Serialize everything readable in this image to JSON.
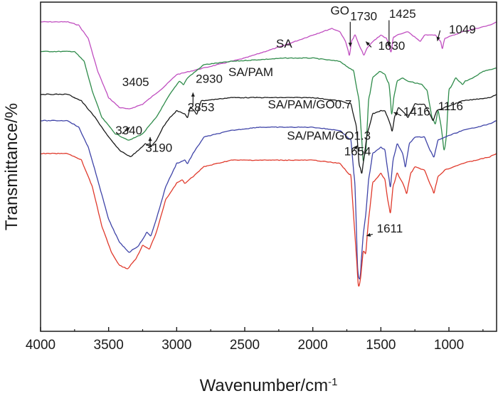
{
  "chart_data": {
    "type": "line",
    "xlabel": "Wavenumber/cm",
    "xlabel_sup": "-1",
    "ylabel": "Transmittance/%",
    "xlim": [
      4000,
      650
    ],
    "x_reversed": true,
    "y_ticks_shown": false,
    "xticks": [
      4000,
      3500,
      3000,
      2500,
      2000,
      1500,
      1000
    ],
    "grid": false,
    "legend": "none",
    "series": [
      {
        "name": "GO",
        "color": "#c04ec0",
        "offset": 0.06,
        "points": [
          [
            4000,
            0.0
          ],
          [
            3800,
            0.0
          ],
          [
            3720,
            0.01
          ],
          [
            3650,
            0.05
          ],
          [
            3580,
            0.15
          ],
          [
            3500,
            0.23
          ],
          [
            3420,
            0.26
          ],
          [
            3350,
            0.265
          ],
          [
            3250,
            0.25
          ],
          [
            3100,
            0.2
          ],
          [
            3000,
            0.16
          ],
          [
            2800,
            0.14
          ],
          [
            2500,
            0.11
          ],
          [
            2200,
            0.07
          ],
          [
            2000,
            0.04
          ],
          [
            1860,
            0.02
          ],
          [
            1800,
            0.03
          ],
          [
            1760,
            0.06
          ],
          [
            1730,
            0.1
          ],
          [
            1715,
            0.06
          ],
          [
            1690,
            0.04
          ],
          [
            1650,
            0.08
          ],
          [
            1625,
            0.1
          ],
          [
            1600,
            0.08
          ],
          [
            1560,
            0.06
          ],
          [
            1500,
            0.04
          ],
          [
            1460,
            0.05
          ],
          [
            1440,
            0.07
          ],
          [
            1425,
            0.09
          ],
          [
            1410,
            0.05
          ],
          [
            1380,
            0.04
          ],
          [
            1300,
            0.03
          ],
          [
            1240,
            0.05
          ],
          [
            1210,
            0.06
          ],
          [
            1180,
            0.04
          ],
          [
            1100,
            0.04
          ],
          [
            1060,
            0.06
          ],
          [
            1049,
            0.08
          ],
          [
            1030,
            0.05
          ],
          [
            900,
            0.03
          ],
          [
            700,
            0.01
          ],
          [
            650,
            0.0
          ]
        ]
      },
      {
        "name": "SA",
        "color": "#2e8b4a",
        "offset": 0.15,
        "points": [
          [
            4000,
            0.0
          ],
          [
            3750,
            0.0
          ],
          [
            3680,
            0.03
          ],
          [
            3620,
            0.12
          ],
          [
            3550,
            0.2
          ],
          [
            3450,
            0.25
          ],
          [
            3350,
            0.27
          ],
          [
            3250,
            0.25
          ],
          [
            3150,
            0.2
          ],
          [
            3050,
            0.13
          ],
          [
            2980,
            0.09
          ],
          [
            2950,
            0.1
          ],
          [
            2920,
            0.08
          ],
          [
            2800,
            0.04
          ],
          [
            2600,
            0.03
          ],
          [
            2400,
            0.025
          ],
          [
            2200,
            0.02
          ],
          [
            2000,
            0.02
          ],
          [
            1800,
            0.03
          ],
          [
            1700,
            0.06
          ],
          [
            1660,
            0.15
          ],
          [
            1630,
            0.33
          ],
          [
            1610,
            0.3
          ],
          [
            1590,
            0.15
          ],
          [
            1560,
            0.08
          ],
          [
            1510,
            0.06
          ],
          [
            1470,
            0.07
          ],
          [
            1440,
            0.1
          ],
          [
            1420,
            0.19
          ],
          [
            1405,
            0.14
          ],
          [
            1380,
            0.09
          ],
          [
            1340,
            0.08
          ],
          [
            1300,
            0.09
          ],
          [
            1200,
            0.1
          ],
          [
            1160,
            0.12
          ],
          [
            1125,
            0.2
          ],
          [
            1100,
            0.22
          ],
          [
            1080,
            0.18
          ],
          [
            1060,
            0.22
          ],
          [
            1035,
            0.3
          ],
          [
            1020,
            0.26
          ],
          [
            1000,
            0.12
          ],
          [
            950,
            0.08
          ],
          [
            900,
            0.1
          ],
          [
            880,
            0.09
          ],
          [
            820,
            0.08
          ],
          [
            750,
            0.06
          ],
          [
            650,
            0.05
          ]
        ]
      },
      {
        "name": "SA/PAM",
        "color": "#1a1a1a",
        "offset": 0.28,
        "points": [
          [
            4000,
            0.0
          ],
          [
            3800,
            0.0
          ],
          [
            3700,
            0.02
          ],
          [
            3600,
            0.07
          ],
          [
            3500,
            0.13
          ],
          [
            3420,
            0.17
          ],
          [
            3340,
            0.19
          ],
          [
            3280,
            0.17
          ],
          [
            3230,
            0.15
          ],
          [
            3190,
            0.16
          ],
          [
            3150,
            0.14
          ],
          [
            3100,
            0.1
          ],
          [
            3050,
            0.07
          ],
          [
            3000,
            0.05
          ],
          [
            2940,
            0.06
          ],
          [
            2920,
            0.07
          ],
          [
            2900,
            0.04
          ],
          [
            2870,
            0.05
          ],
          [
            2853,
            0.06
          ],
          [
            2820,
            0.02
          ],
          [
            2600,
            0.01
          ],
          [
            2400,
            0.01
          ],
          [
            2200,
            0.01
          ],
          [
            2000,
            0.01
          ],
          [
            1800,
            0.02
          ],
          [
            1720,
            0.03
          ],
          [
            1680,
            0.1
          ],
          [
            1660,
            0.21
          ],
          [
            1640,
            0.24
          ],
          [
            1620,
            0.18
          ],
          [
            1600,
            0.12
          ],
          [
            1560,
            0.06
          ],
          [
            1500,
            0.05
          ],
          [
            1470,
            0.05
          ],
          [
            1450,
            0.07
          ],
          [
            1416,
            0.11
          ],
          [
            1400,
            0.07
          ],
          [
            1370,
            0.04
          ],
          [
            1320,
            0.06
          ],
          [
            1300,
            0.07
          ],
          [
            1250,
            0.03
          ],
          [
            1180,
            0.03
          ],
          [
            1140,
            0.06
          ],
          [
            1116,
            0.08
          ],
          [
            1090,
            0.05
          ],
          [
            1030,
            0.04
          ],
          [
            900,
            0.02
          ],
          [
            700,
            0.01
          ],
          [
            650,
            0.0
          ]
        ]
      },
      {
        "name": "SA/PAM/GO0.7",
        "color": "#3f44a8",
        "offset": 0.36,
        "points": [
          [
            4000,
            0.0
          ],
          [
            3800,
            0.0
          ],
          [
            3720,
            0.02
          ],
          [
            3650,
            0.08
          ],
          [
            3580,
            0.18
          ],
          [
            3500,
            0.3
          ],
          [
            3420,
            0.37
          ],
          [
            3350,
            0.4
          ],
          [
            3280,
            0.38
          ],
          [
            3220,
            0.34
          ],
          [
            3190,
            0.35
          ],
          [
            3150,
            0.3
          ],
          [
            3080,
            0.2
          ],
          [
            3000,
            0.13
          ],
          [
            2940,
            0.12
          ],
          [
            2920,
            0.13
          ],
          [
            2880,
            0.1
          ],
          [
            2800,
            0.05
          ],
          [
            2600,
            0.03
          ],
          [
            2400,
            0.02
          ],
          [
            2200,
            0.02
          ],
          [
            2000,
            0.02
          ],
          [
            1800,
            0.03
          ],
          [
            1720,
            0.06
          ],
          [
            1690,
            0.2
          ],
          [
            1670,
            0.45
          ],
          [
            1654,
            0.48
          ],
          [
            1630,
            0.35
          ],
          [
            1610,
            0.28
          ],
          [
            1590,
            0.18
          ],
          [
            1560,
            0.1
          ],
          [
            1500,
            0.08
          ],
          [
            1470,
            0.09
          ],
          [
            1450,
            0.15
          ],
          [
            1430,
            0.2
          ],
          [
            1410,
            0.12
          ],
          [
            1380,
            0.07
          ],
          [
            1340,
            0.1
          ],
          [
            1320,
            0.14
          ],
          [
            1290,
            0.07
          ],
          [
            1250,
            0.05
          ],
          [
            1180,
            0.05
          ],
          [
            1140,
            0.09
          ],
          [
            1110,
            0.11
          ],
          [
            1080,
            0.06
          ],
          [
            1030,
            0.05
          ],
          [
            900,
            0.03
          ],
          [
            700,
            0.01
          ],
          [
            650,
            0.0
          ]
        ]
      },
      {
        "name": "SA/PAM/GO1.3",
        "color": "#e03a2c",
        "offset": 0.46,
        "points": [
          [
            4000,
            0.0
          ],
          [
            3800,
            0.0
          ],
          [
            3700,
            0.02
          ],
          [
            3620,
            0.1
          ],
          [
            3550,
            0.22
          ],
          [
            3480,
            0.3
          ],
          [
            3420,
            0.34
          ],
          [
            3360,
            0.35
          ],
          [
            3300,
            0.32
          ],
          [
            3250,
            0.28
          ],
          [
            3200,
            0.29
          ],
          [
            3150,
            0.24
          ],
          [
            3080,
            0.14
          ],
          [
            3000,
            0.09
          ],
          [
            2960,
            0.08
          ],
          [
            2940,
            0.09
          ],
          [
            2880,
            0.07
          ],
          [
            2800,
            0.04
          ],
          [
            2600,
            0.02
          ],
          [
            2400,
            0.02
          ],
          [
            2200,
            0.02
          ],
          [
            2000,
            0.02
          ],
          [
            1800,
            0.03
          ],
          [
            1720,
            0.07
          ],
          [
            1690,
            0.25
          ],
          [
            1665,
            0.4
          ],
          [
            1650,
            0.38
          ],
          [
            1630,
            0.3
          ],
          [
            1611,
            0.3
          ],
          [
            1590,
            0.2
          ],
          [
            1560,
            0.09
          ],
          [
            1500,
            0.06
          ],
          [
            1470,
            0.08
          ],
          [
            1450,
            0.14
          ],
          [
            1430,
            0.18
          ],
          [
            1410,
            0.1
          ],
          [
            1380,
            0.06
          ],
          [
            1340,
            0.09
          ],
          [
            1310,
            0.12
          ],
          [
            1280,
            0.06
          ],
          [
            1250,
            0.04
          ],
          [
            1180,
            0.05
          ],
          [
            1140,
            0.09
          ],
          [
            1110,
            0.12
          ],
          [
            1080,
            0.07
          ],
          [
            1030,
            0.05
          ],
          [
            900,
            0.03
          ],
          [
            700,
            0.01
          ],
          [
            650,
            0.0
          ]
        ]
      }
    ],
    "series_labels": [
      {
        "text": "GO",
        "x": 1870,
        "y": 0.038
      },
      {
        "text": "SA",
        "x": 2270,
        "y": 0.138
      },
      {
        "text": "SA/PAM",
        "x": 2620,
        "y": 0.225
      },
      {
        "text": "SA/PAM/GO0.7",
        "x": 2330,
        "y": 0.323
      },
      {
        "text": "SA/PAM/GO1.3",
        "x": 2190,
        "y": 0.418
      }
    ],
    "annotations": [
      {
        "text": "1730",
        "x": 1725,
        "y": 0.055,
        "arrow_from": [
          1725,
          0.06
        ],
        "arrow_to": [
          1725,
          0.135
        ]
      },
      {
        "text": "1425",
        "x": 1440,
        "y": 0.048,
        "arrow_from": [
          1440,
          0.055
        ],
        "arrow_to": [
          1440,
          0.135
        ]
      },
      {
        "text": "1049",
        "x": 1000,
        "y": 0.095,
        "arrow_from": [
          1065,
          0.086
        ],
        "arrow_to": [
          1085,
          0.118
        ]
      },
      {
        "text": "1630",
        "x": 1520,
        "y": 0.145,
        "arrow_from": [
          1570,
          0.137
        ],
        "arrow_to": [
          1610,
          0.12
        ]
      },
      {
        "text": "3405",
        "x": 3400,
        "y": 0.255,
        "arrow_from": null,
        "arrow_to": null
      },
      {
        "text": "2930",
        "x": 2860,
        "y": 0.245,
        "arrow_from": null,
        "arrow_to": null
      },
      {
        "text": "2853",
        "x": 2920,
        "y": 0.332,
        "arrow_from": [
          2880,
          0.31
        ],
        "arrow_to": [
          2880,
          0.275
        ]
      },
      {
        "text": "1416",
        "x": 1335,
        "y": 0.345,
        "arrow_from": [
          1350,
          0.345
        ],
        "arrow_to": [
          1405,
          0.335
        ]
      },
      {
        "text": "1116",
        "x": 1080,
        "y": 0.328,
        "arrow_from": null,
        "arrow_to": null
      },
      {
        "text": "3340",
        "x": 3450,
        "y": 0.402,
        "arrow_from": [
          3400,
          0.4
        ],
        "arrow_to": [
          3345,
          0.38
        ]
      },
      {
        "text": "3190",
        "x": 3230,
        "y": 0.455,
        "arrow_from": [
          3195,
          0.44
        ],
        "arrow_to": [
          3195,
          0.41
        ]
      },
      {
        "text": "1654",
        "x": 1770,
        "y": 0.465,
        "arrow_from": [
          1710,
          0.455
        ],
        "arrow_to": [
          1670,
          0.435
        ]
      },
      {
        "text": "1611",
        "x": 1530,
        "y": 0.7,
        "arrow_from": [
          1560,
          0.705
        ],
        "arrow_to": [
          1605,
          0.71
        ]
      }
    ]
  }
}
